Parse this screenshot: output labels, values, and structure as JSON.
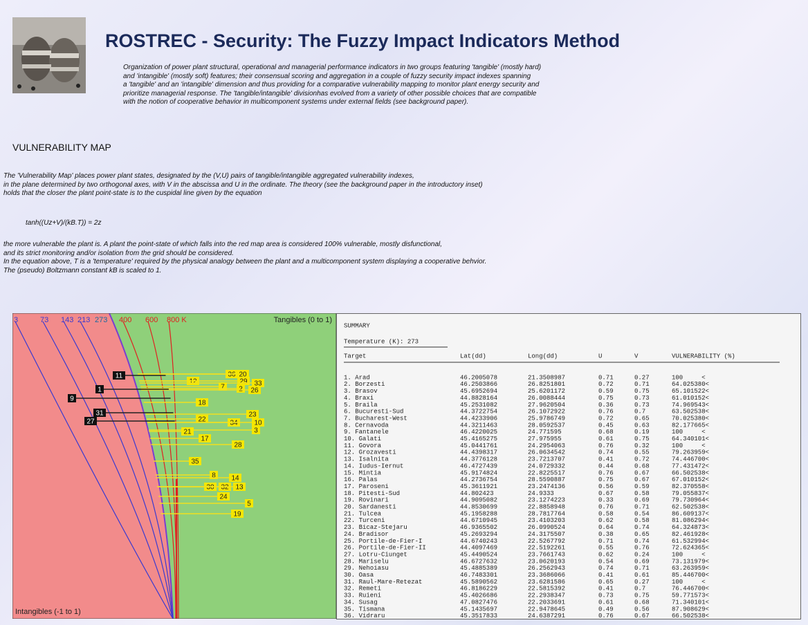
{
  "header": {
    "title": "ROSTREC - Security: The Fuzzy Impact Indicators Method",
    "description": [
      "Organization of power plant structural, operational and managerial performance indicators in two groups featuring 'tangible' (mostly hard)",
      "and 'intangible' (mostly soft) features; their consensual scoring and aggregation in a couple of fuzzy security impact indexes spanning",
      "a 'tangible' and an 'intangible' dimension and thus providing for a comparative vulnerability mapping to monitor plant energy security and",
      "prioritize managerial response. The 'tangible/intangible' divisionhas evolved from a variety of other possible choices that are compatible",
      "with the notion of cooperative behavior in multicomponent systems under external fields (see background paper)."
    ]
  },
  "section": {
    "heading": "VULNERABILITY MAP",
    "intro": [
      "The 'Vulnerability Map' places power plant states, designated by the (V,U) pairs of tangible/intangible aggregated vulnerability indexes,",
      "in the plane determined by two orthogonal axes, with V in the abscissa and U in the ordinate. The theory (see the background paper in the introductory inset)",
      "holds that the closer the plant point-state is to the cuspidal line given by the equation"
    ],
    "equation": "tanh((Uz+V)/(kB.T)) = 2z",
    "outro": [
      "the more vulnerable the plant is. A plant the point-state of which falls into the red map area is considered 100% vulnerable, mostly disfunctional,",
      "and its strict monitoring and/or isolation from the grid should be considered.",
      "In the equation above, T is a 'temperature' required by the physical analogy between the plant and a multicomponent system displaying a cooperative behvior.",
      "The (pseudo) Boltzmann constant kB is scaled to 1."
    ]
  },
  "map": {
    "temperatures": [
      "3",
      "73",
      "143",
      "213",
      "273",
      "400",
      "600",
      "800 K"
    ],
    "x_axis": "Tangibles (0 to 1)",
    "y_axis": "Intangibles (-1 to 1)",
    "points": [
      "11",
      "12",
      "36",
      "20",
      "29",
      "33",
      "7",
      "2",
      "26",
      "1",
      "9",
      "18",
      "31",
      "27",
      "23",
      "22",
      "34",
      "10",
      "3",
      "21",
      "17",
      "28",
      "35",
      "8",
      "14",
      "30",
      "32",
      "13",
      "24",
      "5",
      "19"
    ]
  },
  "summary": {
    "title": "SUMMARY",
    "temperature": "Temperature (K): 273",
    "columns": [
      "Target",
      "Lat(dd)",
      "Long(dd)",
      "U",
      "V",
      "VULNERABILITY (%)"
    ],
    "rows": [
      [
        "1. Arad",
        "46.2005078",
        "21.3508987",
        "0.71",
        "0.27",
        "100     <"
      ],
      [
        "2. Borzesti",
        "46.2503866",
        "26.8251801",
        "0.72",
        "0.71",
        "64.025380<"
      ],
      [
        "3. Brasov",
        "45.6952694",
        "25.6201172",
        "0.59",
        "0.75",
        "65.101522<"
      ],
      [
        "4. Braxi",
        "44.8828164",
        "26.0088444",
        "0.75",
        "0.73",
        "61.010152<"
      ],
      [
        "5. Braila",
        "45.2531082",
        "27.9620504",
        "0.36",
        "0.73",
        "74.969543<"
      ],
      [
        "6. Bucuresti-Sud",
        "44.3722754",
        "26.1072922",
        "0.76",
        "0.7",
        "63.502538<"
      ],
      [
        "7. Bucharest-West",
        "44.4233906",
        "25.9786749",
        "0.72",
        "0.65",
        "70.025380<"
      ],
      [
        "8. Cernavoda",
        "44.3211463",
        "28.0592537",
        "0.45",
        "0.63",
        "82.177665<"
      ],
      [
        "9. Fantanele",
        "46.4220025",
        "24.771595",
        "0.68",
        "0.19",
        "100     <"
      ],
      [
        "10. Galati",
        "45.4165275",
        "27.975955",
        "0.61",
        "0.75",
        "64.340101<"
      ],
      [
        "11. Govora",
        "45.0441761",
        "24.2954063",
        "0.76",
        "0.32",
        "100     <"
      ],
      [
        "12. Grozavesti",
        "44.4398317",
        "26.0634542",
        "0.74",
        "0.55",
        "79.263959<"
      ],
      [
        "13. Isalnita",
        "44.3776128",
        "23.7213707",
        "0.41",
        "0.72",
        "74.446700<"
      ],
      [
        "14. Iudus-Iernut",
        "46.4727439",
        "24.0729332",
        "0.44",
        "0.68",
        "77.431472<"
      ],
      [
        "15. Mintia",
        "45.9174824",
        "22.8225517",
        "0.76",
        "0.67",
        "66.502538<"
      ],
      [
        "16. Palas",
        "44.2736754",
        "28.5590887",
        "0.75",
        "0.67",
        "67.010152<"
      ],
      [
        "17. Paroseni",
        "45.3611921",
        "23.2474136",
        "0.56",
        "0.59",
        "82.370558<"
      ],
      [
        "18. Pitesti-Sud",
        "44.802423",
        "24.9333",
        "0.67",
        "0.58",
        "79.055837<"
      ],
      [
        "19. Rovinari",
        "44.9095082",
        "23.1274223",
        "0.33",
        "0.69",
        "79.730964<"
      ],
      [
        "20. Sardanesti",
        "44.8530699",
        "22.8858948",
        "0.76",
        "0.71",
        "62.502538<"
      ],
      [
        "21. Tulcea",
        "45.1958288",
        "28.7817764",
        "0.58",
        "0.54",
        "86.609137<"
      ],
      [
        "22. Turceni",
        "44.6710945",
        "23.4103203",
        "0.62",
        "0.58",
        "81.086294<"
      ],
      [
        "23. Bicaz-Stejaru",
        "46.9365502",
        "26.0990524",
        "0.64",
        "0.74",
        "64.324873<"
      ],
      [
        "24. Bradisor",
        "45.2693294",
        "24.3175507",
        "0.38",
        "0.65",
        "82.461928<"
      ],
      [
        "25. Portile-de-Fier-I",
        "44.6740243",
        "22.5267792",
        "0.71",
        "0.74",
        "61.532994<"
      ],
      [
        "26. Portile-de-Fier-II",
        "44.4097469",
        "22.5192261",
        "0.55",
        "0.76",
        "72.624365<"
      ],
      [
        "27. Lotru-Ciunget",
        "45.4490524",
        "23.7661743",
        "0.62",
        "0.24",
        "100     <"
      ],
      [
        "28. Mariselu",
        "46.6727632",
        "23.0620193",
        "0.54",
        "0.69",
        "73.131979<"
      ],
      [
        "29. Nehoiasu",
        "45.4885389",
        "26.2562943",
        "0.74",
        "0.71",
        "63.263959<"
      ],
      [
        "30. Oasa",
        "46.7483301",
        "23.3686066",
        "0.41",
        "0.61",
        "85.446700<"
      ],
      [
        "31. Raul-Mare-Retezat",
        "45.5890562",
        "23.6281586",
        "0.65",
        "0.27",
        "100     <"
      ],
      [
        "32. Remeti",
        "46.8186229",
        "22.5815392",
        "0.41",
        "0.7",
        "76.446700<"
      ],
      [
        "33. Ruieni",
        "45.4026686",
        "22.2938347",
        "0.73",
        "0.75",
        "59.771573<"
      ],
      [
        "34. Susag",
        "47.0827476",
        "22.2033691",
        "0.61",
        "0.68",
        "71.340101<"
      ],
      [
        "35. Tismana",
        "45.1435697",
        "22.9478645",
        "0.49",
        "0.56",
        "87.908629<"
      ],
      [
        "36. Vidraru",
        "45.3517833",
        "24.6387291",
        "0.76",
        "0.67",
        "66.502538<"
      ]
    ]
  }
}
